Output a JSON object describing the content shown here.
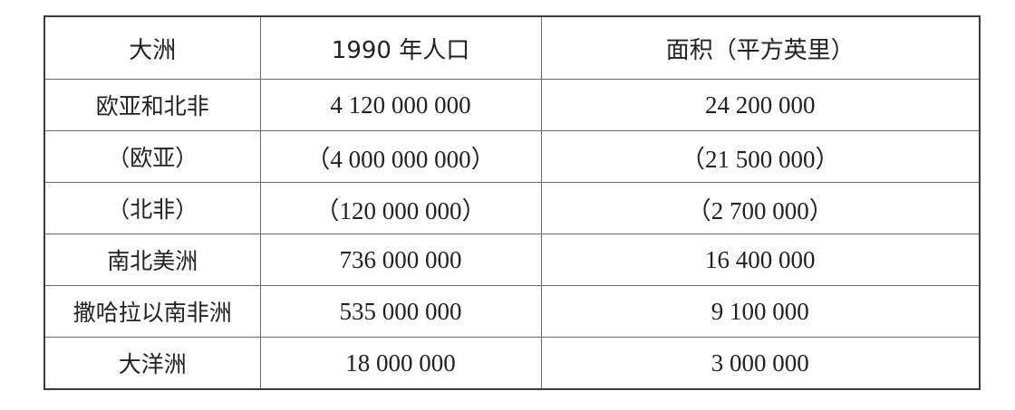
{
  "table": {
    "headers": [
      "大洲",
      "1990 年人口",
      "面积（平方英里）"
    ],
    "rows": [
      {
        "continent": "欧亚和北非",
        "population": "4 120 000 000",
        "area": "24 200 000"
      },
      {
        "continent": "（欧亚）",
        "population": "（4 000 000 000）",
        "area": "（21 500 000）"
      },
      {
        "continent": "（北非）",
        "population": "（120 000 000）",
        "area": "（2 700 000）"
      },
      {
        "continent": "南北美洲",
        "population": "736 000 000",
        "area": "16 400 000"
      },
      {
        "continent": "撒哈拉以南非洲",
        "population": "535 000 000",
        "area": "9 100 000"
      },
      {
        "continent": "大洋洲",
        "population": "18 000 000",
        "area": "3 000 000"
      }
    ]
  }
}
